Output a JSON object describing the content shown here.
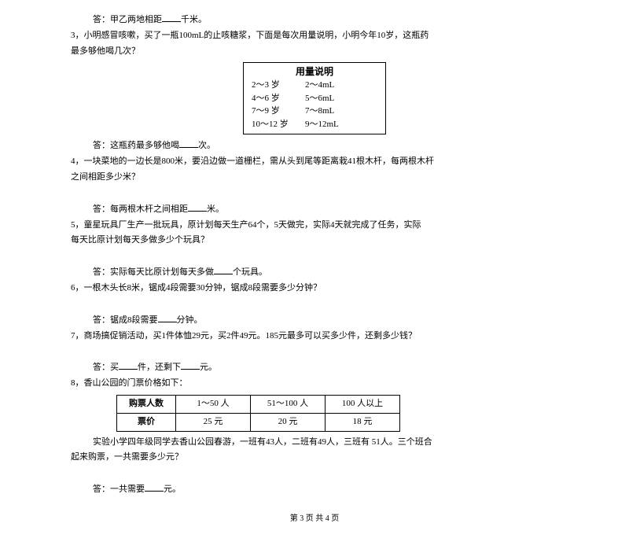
{
  "q2": {
    "answer_prefix": "答：甲乙两地相距",
    "answer_suffix": "千米。"
  },
  "q3": {
    "text1": "3，小明感冒咳嗽，买了一瓶100mL的止咳糖浆，下面是每次用量说明，小明今年10岁，这瓶药",
    "text2": "最多够他喝几次？",
    "dosage_title": "用量说明",
    "rows": [
      {
        "age": "2～3 岁",
        "amt": "2～4mL"
      },
      {
        "age": "4～6 岁",
        "amt": "5～6mL"
      },
      {
        "age": "7～9 岁",
        "amt": "7～8mL"
      },
      {
        "age": "10～12 岁",
        "amt": "9～12mL"
      }
    ],
    "answer_prefix": "答：这瓶药最多够他喝",
    "answer_suffix": "次。"
  },
  "q4": {
    "text1": "4，一块菜地的一边长是800米，要沿边做一道栅栏，需从头到尾等距离栽41根木杆，每两根木杆",
    "text2": "之间相距多少米？",
    "answer_prefix": "答：每两根木杆之间相距",
    "answer_suffix": "米。"
  },
  "q5": {
    "text1": "5，童星玩具厂生产一批玩具，原计划每天生产64个，5天做完，实际4天就完成了任务，实际",
    "text2": "每天比原计划每天多做多少个玩具？",
    "answer_prefix": "答：实际每天比原计划每天多做",
    "answer_suffix": "个玩具。"
  },
  "q6": {
    "text": "6，一根木头长8米，锯成4段需要30分钟，锯成8段需要多少分钟？",
    "answer_prefix": "答：锯成8段需要",
    "answer_suffix": "分钟。"
  },
  "q7": {
    "text": "7，商场搞促销活动，买1件体恤29元，买2件49元。185元最多可以买多少件，还剩多少钱？",
    "answer_prefix": "答：买",
    "mid": "件，还剩下",
    "answer_suffix": "元。"
  },
  "q8": {
    "text": "8，香山公园的门票价格如下：",
    "table": {
      "header": [
        "购票人数",
        "1～50 人",
        "51～100 人",
        "100 人以上"
      ],
      "row": [
        "票价",
        "25 元",
        "20 元",
        "18 元"
      ]
    },
    "text2a": "实验小学四年级同学去香山公园春游，一班有43人，二班有49人，三班有 51人。三个班合",
    "text2b": "起来购票，一共需要多少元？",
    "answer_prefix": "答：一共需要",
    "answer_suffix": "元。"
  },
  "footer": "第 3 页 共 4 页"
}
